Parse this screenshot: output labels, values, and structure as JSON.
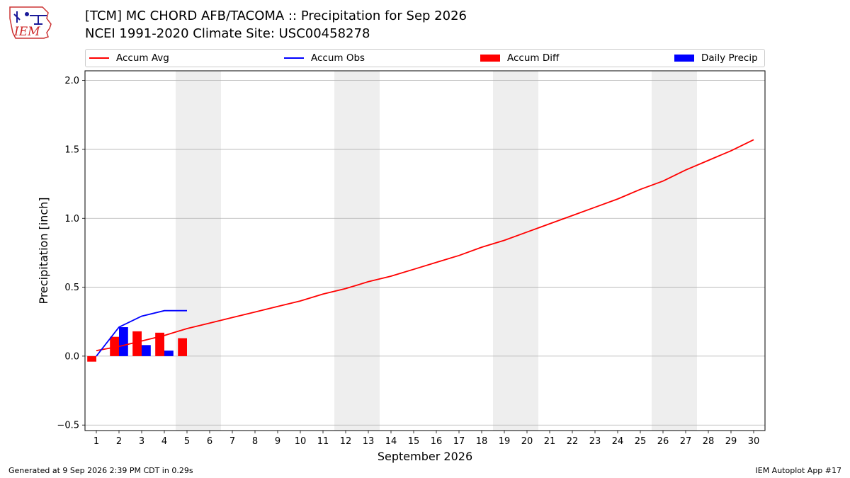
{
  "logo_text": "IEM",
  "header": {
    "title": "[TCM] MC CHORD AFB/TACOMA :: Precipitation for Sep 2026",
    "subtitle": "NCEI 1991-2020 Climate Site: USC00458278"
  },
  "footer": {
    "generated": "Generated at 9 Sep 2026 2:39 PM CDT in 0.29s",
    "app": "IEM Autoplot App #17"
  },
  "colors": {
    "accum_avg": "#ff0000",
    "accum_obs": "#0000ff",
    "accum_diff": "#ff0000",
    "daily_precip": "#0000ff",
    "weekend_shade": "#eeeeee",
    "grid": "#b0b0b0"
  },
  "chart_data": {
    "type": "bar",
    "title": "[TCM] MC CHORD AFB/TACOMA :: Precipitation for Sep 2026",
    "subtitle": "NCEI 1991-2020 Climate Site: USC00458278",
    "xlabel": "September 2026",
    "ylabel": "Precipitation [inch]",
    "xlim": [
      0.5,
      30.5
    ],
    "ylim": [
      -0.54,
      2.07
    ],
    "grid": "horizontal",
    "legend_position": "top",
    "x_ticks": [
      1,
      2,
      3,
      4,
      5,
      6,
      7,
      8,
      9,
      10,
      11,
      12,
      13,
      14,
      15,
      16,
      17,
      18,
      19,
      20,
      21,
      22,
      23,
      24,
      25,
      26,
      27,
      28,
      29,
      30
    ],
    "y_ticks": [
      -0.5,
      0.0,
      0.5,
      1.0,
      1.5,
      2.0
    ],
    "y_tick_labels": [
      "−0.5",
      "0.0",
      "0.5",
      "1.0",
      "1.5",
      "2.0"
    ],
    "shaded_weekends": [
      [
        5,
        6
      ],
      [
        12,
        13
      ],
      [
        19,
        20
      ],
      [
        26,
        27
      ]
    ],
    "legend": [
      "Accum Avg",
      "Accum Obs",
      "Accum Diff",
      "Daily Precip"
    ],
    "series": [
      {
        "name": "Accum Avg",
        "kind": "line",
        "x": [
          1,
          2,
          3,
          4,
          5,
          6,
          7,
          8,
          9,
          10,
          11,
          12,
          13,
          14,
          15,
          16,
          17,
          18,
          19,
          20,
          21,
          22,
          23,
          24,
          25,
          26,
          27,
          28,
          29,
          30
        ],
        "values": [
          0.04,
          0.07,
          0.11,
          0.15,
          0.2,
          0.24,
          0.28,
          0.32,
          0.36,
          0.4,
          0.45,
          0.49,
          0.54,
          0.58,
          0.63,
          0.68,
          0.73,
          0.79,
          0.84,
          0.9,
          0.96,
          1.02,
          1.08,
          1.14,
          1.21,
          1.27,
          1.35,
          1.42,
          1.49,
          1.57
        ]
      },
      {
        "name": "Accum Obs",
        "kind": "line",
        "x": [
          1,
          2,
          3,
          4,
          5
        ],
        "values": [
          0.0,
          0.21,
          0.29,
          0.33,
          0.33
        ]
      },
      {
        "name": "Accum Diff",
        "kind": "bar",
        "x": [
          1,
          2,
          3,
          4,
          5
        ],
        "values": [
          -0.04,
          0.14,
          0.18,
          0.17,
          0.13
        ]
      },
      {
        "name": "Daily Precip",
        "kind": "bar",
        "x": [
          1,
          2,
          3,
          4,
          5
        ],
        "values": [
          0.0,
          0.21,
          0.08,
          0.04,
          0.0
        ]
      }
    ]
  }
}
